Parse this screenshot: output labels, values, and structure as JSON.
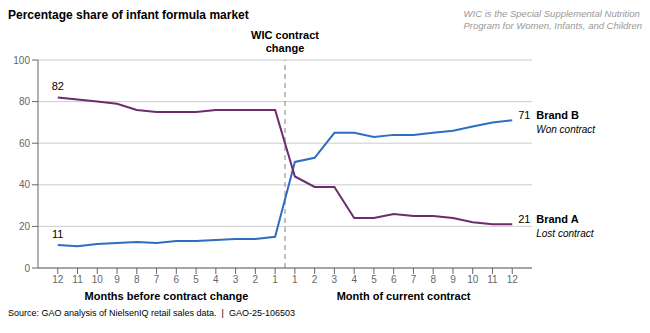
{
  "chart_data": {
    "type": "line",
    "title": "Percentage share of infant formula market",
    "subtitle": "WIC is the Special Supplemental Nutrition\nProgram for Women, Infants, and Children",
    "source": "Source: GAO analysis of NielsenIQ retail sales data.  |  GAO-25-106503",
    "reference_label": "WIC contract\nchange",
    "x_sections": [
      {
        "label": "Months before contract change",
        "size": 12
      },
      {
        "label": "Month of current contract",
        "size": 12
      }
    ],
    "categories": [
      "12",
      "11",
      "10",
      "9",
      "8",
      "7",
      "6",
      "5",
      "4",
      "3",
      "2",
      "1",
      "1",
      "2",
      "3",
      "4",
      "5",
      "6",
      "7",
      "8",
      "9",
      "10",
      "11",
      "12"
    ],
    "series": [
      {
        "name": "Brand B",
        "color": "#2E6EBF",
        "annotation": "Won contract",
        "values": [
          11,
          10.5,
          11.5,
          12,
          12.5,
          12,
          13,
          13,
          13.5,
          14,
          14,
          15,
          51,
          53,
          65,
          65,
          63,
          64,
          64,
          65,
          66,
          68,
          70,
          71
        ],
        "value_labels": [
          "11",
          null,
          null,
          null,
          null,
          null,
          null,
          null,
          null,
          null,
          null,
          null,
          null,
          null,
          null,
          null,
          null,
          null,
          null,
          null,
          null,
          null,
          null,
          "71"
        ]
      },
      {
        "name": "Brand A",
        "color": "#6B2D6B",
        "annotation": "Lost contract",
        "values": [
          82,
          81,
          80,
          79,
          76,
          75,
          75,
          75,
          76,
          76,
          76,
          76,
          44,
          39,
          39,
          24,
          24,
          26,
          25,
          25,
          24,
          22,
          21,
          21
        ],
        "value_labels": [
          "82",
          null,
          null,
          null,
          null,
          null,
          null,
          null,
          null,
          null,
          null,
          null,
          null,
          null,
          null,
          null,
          null,
          null,
          null,
          null,
          null,
          null,
          null,
          "21"
        ]
      }
    ],
    "ylim": [
      0,
      100
    ],
    "yticks": [
      0,
      20,
      40,
      60,
      80,
      100
    ],
    "grid": true
  }
}
